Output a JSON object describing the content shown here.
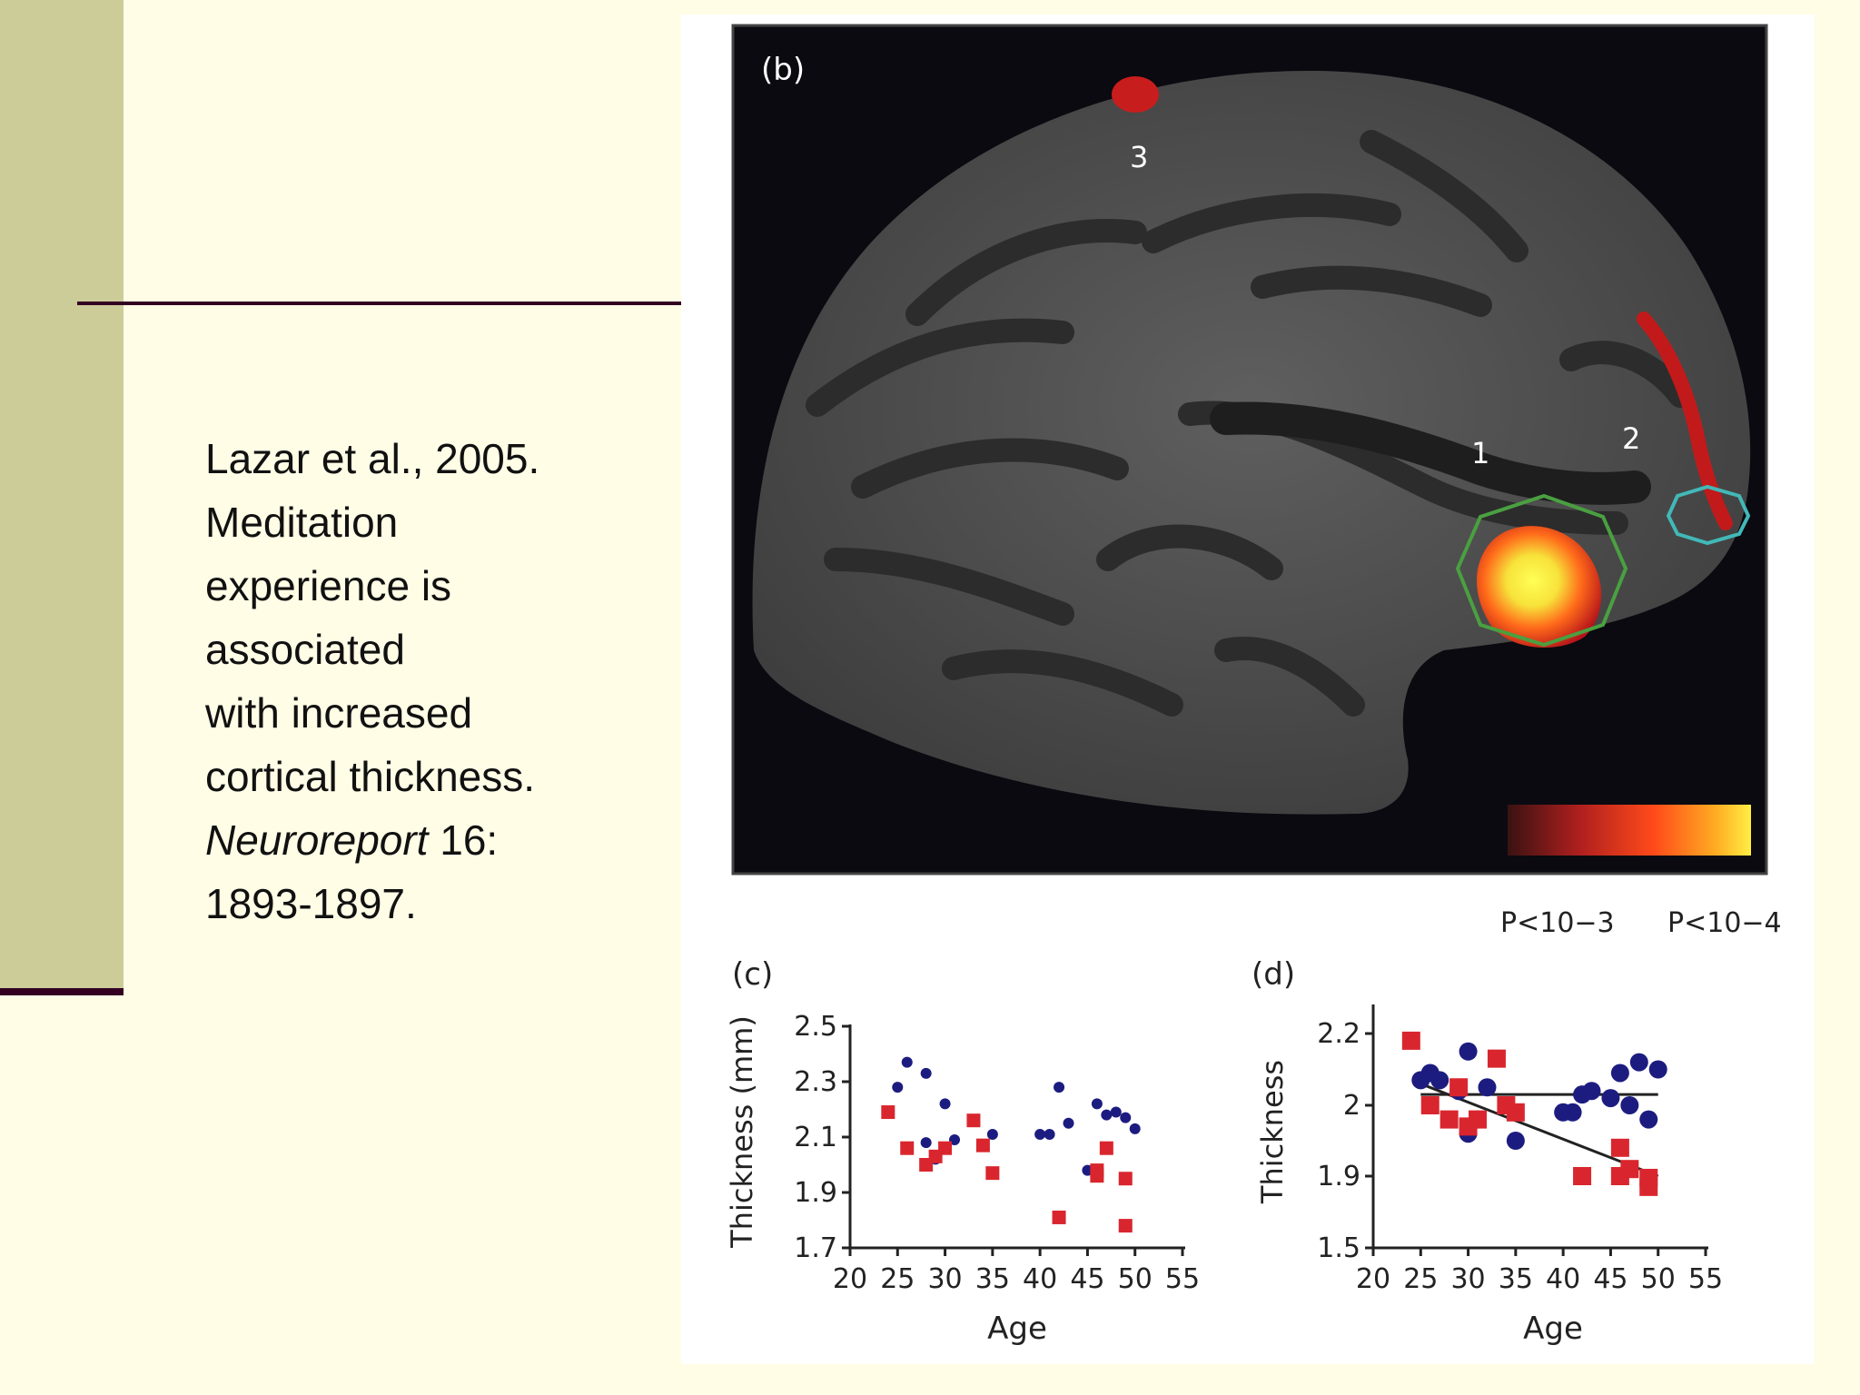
{
  "slide": {
    "citation": {
      "line1": "Lazar et al., 2005.",
      "line2": "Meditation",
      "line3": "experience is",
      "line4": "associated",
      "line5": "with increased",
      "line6": "cortical thickness.",
      "journal": "Neuroreport",
      "volume": " 16:",
      "pages": "1893-1897."
    },
    "colors": {
      "background": "#fffde6",
      "sidebar": "#cccc99",
      "rule": "#330022"
    }
  },
  "figure": {
    "panel_b": {
      "label": "(b)",
      "region_labels": [
        "1",
        "2",
        "3"
      ],
      "colorbar": {
        "low_label": "P<10−3",
        "high_label": "P<10−4"
      },
      "icons": [
        "brain-surface",
        "region-1-outline-green",
        "region-2-outline-cyan"
      ]
    },
    "panel_c": {
      "label": "(c)"
    },
    "panel_d": {
      "label": "(d)"
    }
  },
  "chart_data": [
    {
      "type": "scatter",
      "title": "(c)",
      "xlabel": "Age",
      "ylabel": "Thickness (mm)",
      "xlim": [
        20,
        55
      ],
      "ylim": [
        1.7,
        2.5
      ],
      "xticks": [
        "20",
        "25",
        "30",
        "35",
        "40",
        "45",
        "50",
        "55"
      ],
      "yticks": [
        "1.7",
        "1.9",
        "2.1",
        "2.3",
        "2.5"
      ],
      "series": [
        {
          "marker": "circle",
          "color": "#1c1c80",
          "points": [
            [
              25,
              2.28
            ],
            [
              26,
              2.37
            ],
            [
              28,
              2.33
            ],
            [
              28,
              2.08
            ],
            [
              29,
              2.02
            ],
            [
              30,
              2.22
            ],
            [
              31,
              2.09
            ],
            [
              34,
              2.07
            ],
            [
              35,
              2.11
            ],
            [
              40,
              2.11
            ],
            [
              41,
              2.11
            ],
            [
              42,
              2.28
            ],
            [
              43,
              2.15
            ],
            [
              45,
              1.98
            ],
            [
              46,
              2.22
            ],
            [
              47,
              2.18
            ],
            [
              48,
              2.19
            ],
            [
              49,
              2.17
            ],
            [
              50,
              2.13
            ]
          ]
        },
        {
          "marker": "square",
          "color": "#d9262e",
          "points": [
            [
              24,
              2.19
            ],
            [
              26,
              2.06
            ],
            [
              28,
              2.0
            ],
            [
              29,
              2.03
            ],
            [
              30,
              2.06
            ],
            [
              33,
              2.16
            ],
            [
              34,
              2.07
            ],
            [
              35,
              1.97
            ],
            [
              42,
              1.81
            ],
            [
              46,
              1.96
            ],
            [
              46,
              1.98
            ],
            [
              47,
              2.06
            ],
            [
              49,
              1.95
            ],
            [
              49,
              1.78
            ]
          ]
        }
      ]
    },
    {
      "type": "scatter",
      "title": "(d)",
      "xlabel": "Age",
      "ylabel": "Thickness",
      "xlim": [
        20,
        55
      ],
      "ylim": [
        1.5,
        2.3
      ],
      "xticks": [
        "20",
        "25",
        "30",
        "35",
        "40",
        "45",
        "50",
        "55"
      ],
      "yticks": [
        "1.5",
        "1.9",
        "2",
        "2.2"
      ],
      "series": [
        {
          "marker": "circle",
          "color": "#1c1c80",
          "points": [
            [
              25,
              2.07
            ],
            [
              26,
              2.09
            ],
            [
              27,
              2.07
            ],
            [
              29,
              2.04
            ],
            [
              30,
              1.96
            ],
            [
              30,
              2.15
            ],
            [
              31,
              1.98
            ],
            [
              32,
              2.05
            ],
            [
              35,
              1.95
            ],
            [
              40,
              1.99
            ],
            [
              41,
              1.99
            ],
            [
              42,
              2.03
            ],
            [
              43,
              2.04
            ],
            [
              45,
              2.02
            ],
            [
              46,
              2.09
            ],
            [
              47,
              2.0
            ],
            [
              48,
              2.12
            ],
            [
              49,
              1.98
            ],
            [
              50,
              2.1
            ]
          ]
        },
        {
          "marker": "square",
          "color": "#d9262e",
          "points": [
            [
              24,
              2.18
            ],
            [
              26,
              2.0
            ],
            [
              28,
              1.98
            ],
            [
              29,
              2.05
            ],
            [
              30,
              1.97
            ],
            [
              31,
              1.98
            ],
            [
              33,
              2.13
            ],
            [
              34,
              2.0
            ],
            [
              35,
              1.99
            ],
            [
              42,
              1.9
            ],
            [
              46,
              1.94
            ],
            [
              46,
              1.9
            ],
            [
              47,
              1.91
            ],
            [
              49,
              1.89
            ],
            [
              49,
              1.84
            ]
          ]
        }
      ],
      "trend_lines": [
        {
          "series": 0,
          "from": [
            25,
            2.03
          ],
          "to": [
            50,
            2.03
          ]
        },
        {
          "series": 1,
          "from": [
            25,
            2.06
          ],
          "to": [
            50,
            1.9
          ]
        }
      ]
    }
  ]
}
